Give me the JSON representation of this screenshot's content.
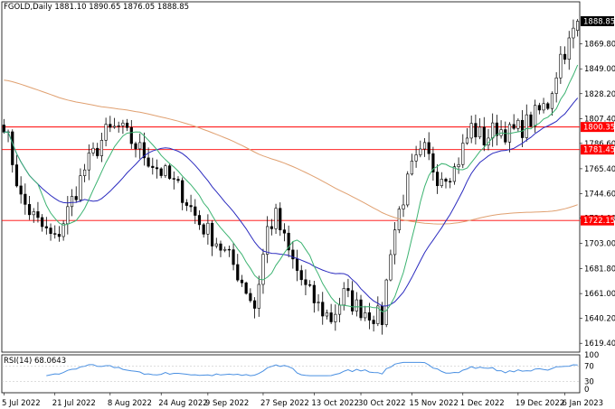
{
  "chart_data": {
    "type": "candlestick",
    "header": {
      "symbol": "FGOLD,Daily",
      "ohlc": "1881.10 1890.65 1876.05 1888.85"
    },
    "main_price_axis": {
      "ylim": [
        1612,
        1896
      ],
      "ticks": [
        "1869.80",
        "1849.00",
        "1828.20",
        "1807.40",
        "1786.60",
        "1765.40",
        "1744.60",
        "1724.00",
        "1703.00",
        "1681.80",
        "1661.00",
        "1640.20",
        "1619.40"
      ],
      "tick_values": [
        1869.8,
        1849.0,
        1828.2,
        1807.4,
        1786.6,
        1765.4,
        1744.6,
        1724.0,
        1703.0,
        1681.8,
        1661.0,
        1640.2,
        1619.4
      ]
    },
    "current_price": {
      "label": "1888.85",
      "value": 1888.85
    },
    "horizontal_levels": [
      {
        "label": "1800.35",
        "value": 1800.35,
        "color": "#ff0000"
      },
      {
        "label": "1781.45",
        "value": 1781.45,
        "color": "#ff0000"
      },
      {
        "label": "1722.15",
        "value": 1722.15,
        "color": "#ff0000"
      }
    ],
    "x_ticks": [
      "5 Jul 2022",
      "21 Jul 2022",
      "8 Aug 2022",
      "24 Aug 2022",
      "9 Sep 2022",
      "27 Sep 2022",
      "13 Oct 2022",
      "30 Oct 2022",
      "15 Nov 2022",
      "1 Dec 2022",
      "19 Dec 2022",
      "6 Jan 2023"
    ],
    "x_tick_index": [
      0,
      12,
      25,
      37,
      48,
      61,
      73,
      84,
      96,
      108,
      121,
      132
    ],
    "num_bars": 136,
    "ma_colors": {
      "fast": "#3cb371",
      "mid": "#2b2bbf",
      "slow": "#e0a070"
    },
    "indicator": {
      "label": "RSI(14) 68.0643",
      "ticks": [
        "100",
        "70",
        "30",
        "0"
      ],
      "tick_values": [
        100,
        70,
        30,
        0
      ],
      "color": "#4a90e2"
    }
  }
}
